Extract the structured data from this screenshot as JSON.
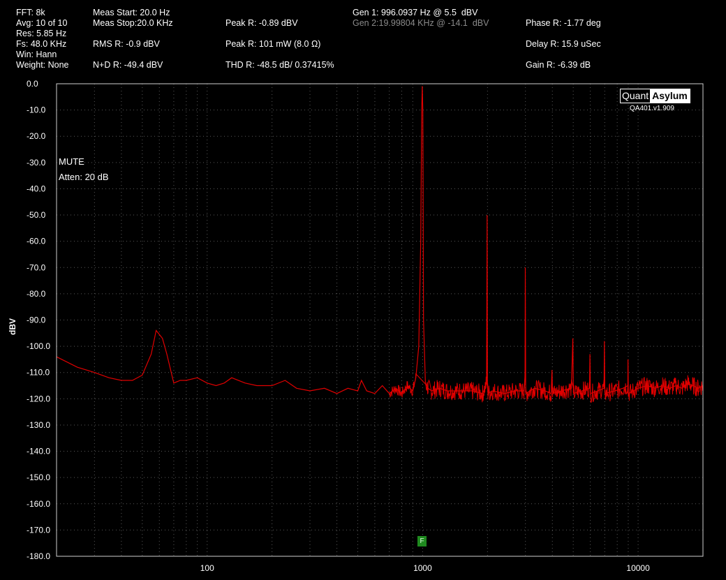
{
  "header": {
    "fft": "FFT: 8k",
    "avg": "Avg: 10 of 10",
    "res": "Res: 5.85 Hz",
    "fs": "Fs: 48.0 KHz",
    "win": "Win: Hann",
    "weight": "Weight: None",
    "meas_start": "Meas Start: 20.0 Hz",
    "meas_stop": "Meas Stop:20.0 KHz",
    "rms": "RMS R: -0.9 dBV",
    "nd": "N+D R: -49.4 dBV",
    "peak_dbv": "Peak R: -0.89 dBV",
    "peak_mw": "Peak R: 101 mW (8.0 Ω)",
    "thd": "THD R: -48.5 dB/ 0.37415%",
    "gen1": "Gen 1: 996.0937 Hz @ 5.5  dBV",
    "gen2": "Gen 2:19.99804 KHz @ -14.1  dBV",
    "phase": "Phase R: -1.77 deg",
    "delay": "Delay R: 15.9 uSec",
    "gain": "Gain R: -6.39 dB"
  },
  "annotations": {
    "mute": "MUTE",
    "atten": "Atten: 20 dB",
    "logo_left": "Quant",
    "logo_right": "Asylum",
    "version": "QA401.v1.909",
    "f_marker": "F"
  },
  "colors": {
    "trace": "#e00000",
    "background": "#000000",
    "grid": "#5a5a5a",
    "f_marker": "#1f8a1f"
  },
  "chart_data": {
    "type": "line",
    "title": "",
    "xlabel": "",
    "ylabel": "dBV",
    "x_scale": "log",
    "xlim": [
      20,
      20000
    ],
    "ylim": [
      -180,
      0
    ],
    "x_ticks": [
      100,
      1000,
      10000
    ],
    "x_tick_labels": [
      "100",
      "1000",
      "10000"
    ],
    "y_ticks": [
      0,
      -10,
      -20,
      -30,
      -40,
      -50,
      -60,
      -70,
      -80,
      -90,
      -100,
      -110,
      -120,
      -130,
      -140,
      -150,
      -160,
      -170,
      -180
    ],
    "y_tick_labels": [
      "0.0",
      "-10.0",
      "-20.0",
      "-30.0",
      "-40.0",
      "-50.0",
      "-60.0",
      "-70.0",
      "-80.0",
      "-90.0",
      "-100.0",
      "-110.0",
      "-120.0",
      "-130.0",
      "-140.0",
      "-150.0",
      "-160.0",
      "-170.0",
      "-180.0"
    ],
    "grid": true,
    "series": [
      {
        "x": [
          20,
          25,
          30,
          35,
          40,
          45,
          50,
          55,
          58,
          62,
          65,
          70,
          75,
          80,
          90,
          100,
          110,
          120,
          130,
          150,
          170,
          200,
          230,
          260,
          300,
          350,
          400,
          450,
          500,
          520,
          550,
          600,
          650,
          700,
          750,
          800,
          850,
          900,
          930,
          960,
          980,
          990,
          996,
          1002,
          1010,
          1030,
          1060,
          1100,
          1200,
          1300,
          1500,
          1700,
          1900,
          1980,
          1992,
          2000,
          2010,
          2100,
          2400,
          2700,
          2950,
          2988,
          2995,
          3010,
          3300,
          3700,
          3950,
          3985,
          4010,
          4400,
          4900,
          4980,
          5010,
          5500,
          5950,
          5978,
          6010,
          6500,
          6950,
          6973,
          7010,
          7800,
          8500,
          8960,
          8975,
          9010,
          10000,
          11000,
          12000,
          13000,
          14000,
          15000,
          16000,
          17000,
          18000,
          19000,
          20000
        ],
        "y": [
          -104,
          -108,
          -110,
          -112,
          -113,
          -113,
          -111,
          -103,
          -94,
          -97,
          -103,
          -114,
          -113,
          -113,
          -112,
          -114,
          -115,
          -114,
          -112,
          -114,
          -115,
          -115,
          -113,
          -116,
          -117,
          -116,
          -118,
          -116,
          -117,
          -113,
          -117,
          -118,
          -115,
          -118,
          -116,
          -118,
          -115,
          -117,
          -112,
          -100,
          -60,
          -10,
          -0.9,
          -10,
          -90,
          -114,
          -116,
          -117,
          -116,
          -117,
          -117,
          -117,
          -118,
          -114,
          -50,
          -115,
          -118,
          -117,
          -118,
          -117,
          -117,
          -112,
          -70,
          -118,
          -116,
          -117,
          -118,
          -109,
          -118,
          -117,
          -116,
          -97,
          -118,
          -117,
          -116,
          -103,
          -118,
          -117,
          -116,
          -98,
          -118,
          -117,
          -116,
          -115,
          -105,
          -118,
          -116,
          -115,
          -116,
          -115,
          -116,
          -115,
          -116,
          -114,
          -115,
          -116,
          -115
        ]
      }
    ]
  }
}
